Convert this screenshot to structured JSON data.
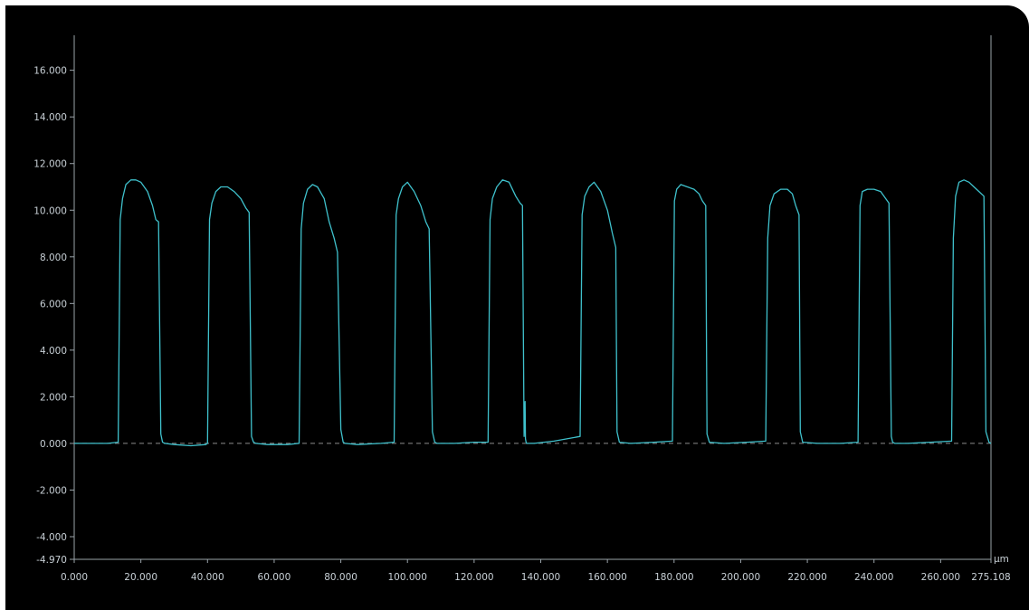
{
  "chart_data": {
    "type": "line",
    "xlabel": "",
    "ylabel": "",
    "x_unit": "μm",
    "xlim": [
      0,
      275.108
    ],
    "ylim": [
      -4.97,
      17.5
    ],
    "x_ticks": [
      0,
      20,
      40,
      60,
      80,
      100,
      120,
      140,
      160,
      180,
      200,
      220,
      240,
      260,
      275.108
    ],
    "x_tick_labels": [
      "0.000",
      "20.000",
      "40.000",
      "60.000",
      "80.000",
      "100.000",
      "120.000",
      "140.000",
      "160.000",
      "180.000",
      "200.000",
      "220.000",
      "240.000",
      "260.000",
      "275.108"
    ],
    "y_ticks": [
      -4.97,
      -4,
      -2,
      0,
      2,
      4,
      6,
      8,
      10,
      12,
      14,
      16
    ],
    "y_tick_labels": [
      "-4.970",
      "-4.000",
      "-2.000",
      "0.000",
      "2.000",
      "4.000",
      "6.000",
      "8.000",
      "10.000",
      "12.000",
      "14.000",
      "16.000"
    ],
    "reference_line": {
      "y": 0,
      "style": "dashed"
    },
    "colors": {
      "line": "#3fc1cc",
      "background": "#000000",
      "axis": "#9aa3a9",
      "reference": "#8c8c8c"
    },
    "grid": false,
    "series": [
      {
        "x": [
          0,
          10,
          13.2,
          13.8,
          14.5,
          15.5,
          17,
          18.5,
          20,
          22,
          23.5,
          24.5,
          25.3,
          26,
          26.5,
          27.2,
          30,
          35,
          39.5,
          40,
          40.6,
          41.3,
          42.5,
          44,
          46,
          48,
          50,
          51.5,
          52.5,
          53.2,
          53.8,
          54.5,
          58,
          64,
          67.5,
          68.1,
          68.8,
          70,
          71.5,
          73,
          75,
          76.5,
          78,
          79,
          80,
          80.7,
          81.3,
          85,
          92,
          96,
          96.6,
          97.3,
          98.5,
          100,
          102,
          104,
          105.5,
          106.5,
          107.5,
          108.2,
          108.9,
          114,
          120,
          124.2,
          124.8,
          125.5,
          126.8,
          128.5,
          130.5,
          132.5,
          133.8,
          134.5,
          135,
          135.3,
          135.4,
          135.6,
          135.8,
          138,
          144,
          151.8,
          152.4,
          153.2,
          154.5,
          156,
          158,
          160,
          161.5,
          162.5,
          162.9,
          163.6,
          167,
          174,
          179.5,
          180.1,
          180.8,
          182,
          184,
          186,
          187.5,
          188.5,
          189.5,
          189.9,
          190.6,
          195,
          202,
          207.5,
          208.1,
          208.8,
          210,
          212,
          214,
          215.5,
          216.5,
          217.5,
          217.9,
          218.6,
          223,
          230,
          235.2,
          235.8,
          236.5,
          238,
          240,
          242,
          243.5,
          244.5,
          245.2,
          245.6,
          246.3,
          250,
          257,
          263.3,
          263.8,
          264.5,
          265.5,
          267,
          268.5,
          270,
          271.5,
          273,
          273.6,
          274.5,
          275.108
        ],
        "y": [
          0,
          0,
          0.05,
          9.6,
          10.5,
          11.1,
          11.3,
          11.3,
          11.2,
          10.8,
          10.2,
          9.6,
          9.5,
          0.4,
          0.05,
          0,
          -0.05,
          -0.1,
          -0.05,
          0,
          9.6,
          10.3,
          10.8,
          11.0,
          11.0,
          10.8,
          10.5,
          10.1,
          9.9,
          0.3,
          0.05,
          0,
          -0.05,
          -0.05,
          0,
          9.2,
          10.3,
          10.9,
          11.1,
          11.0,
          10.5,
          9.5,
          8.8,
          8.2,
          0.6,
          0.05,
          0,
          -0.05,
          0,
          0.05,
          9.8,
          10.5,
          11.0,
          11.2,
          10.8,
          10.2,
          9.5,
          9.2,
          0.5,
          0.05,
          0,
          0,
          0.05,
          0.05,
          9.6,
          10.5,
          11.0,
          11.3,
          11.2,
          10.6,
          10.3,
          10.2,
          0.3,
          1.8,
          0.2,
          0.05,
          0,
          0,
          0.1,
          0.3,
          9.8,
          10.6,
          11.0,
          11.2,
          10.8,
          10.0,
          9.0,
          8.4,
          0.5,
          0.05,
          0,
          0.05,
          0.1,
          10.4,
          10.9,
          11.1,
          11.0,
          10.9,
          10.7,
          10.4,
          10.2,
          0.4,
          0.05,
          0,
          0.05,
          0.1,
          8.8,
          10.2,
          10.7,
          10.9,
          10.9,
          10.7,
          10.2,
          9.8,
          0.5,
          0.05,
          0,
          0,
          0.05,
          10.2,
          10.8,
          10.9,
          10.9,
          10.8,
          10.5,
          10.3,
          0.3,
          0.05,
          0,
          0,
          0.05,
          0.1,
          8.8,
          10.6,
          11.2,
          11.3,
          11.2,
          11.0,
          10.8,
          10.6,
          0.5,
          0.05,
          0
        ]
      }
    ]
  }
}
